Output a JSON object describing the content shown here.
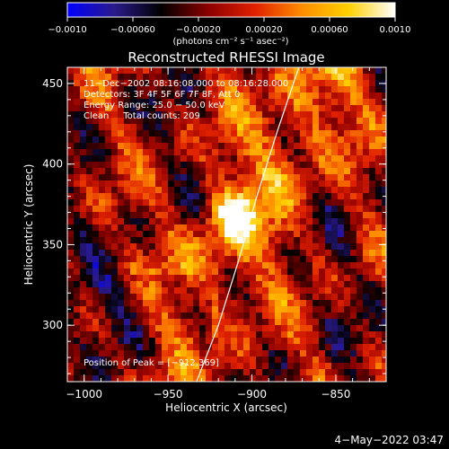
{
  "chart_data": {
    "type": "heatmap",
    "title": "Reconstructed RHESSI Image",
    "xlabel": "Heliocentric X (arcsec)",
    "ylabel": "Heliocentric Y (arcsec)",
    "xlim": [
      -1010,
      -820
    ],
    "ylim": [
      265,
      460
    ],
    "x_ticks": [
      -1000,
      -950,
      -900,
      -850
    ],
    "y_ticks": [
      300,
      350,
      400,
      450
    ],
    "x_tick_labels": [
      "−1000",
      "−950",
      "−900",
      "−850"
    ],
    "y_tick_labels": [
      "300",
      "350",
      "400",
      "450"
    ],
    "colorbar": {
      "range": [
        -0.001,
        0.001
      ],
      "ticks": [
        -0.001,
        -0.0006,
        -0.0002,
        0.0002,
        0.0006,
        0.001
      ],
      "tick_labels": [
        "−0.0010",
        "−0.00060",
        "−0.00020",
        "0.00020",
        "0.00060",
        "0.0010"
      ],
      "units": "(photons cm⁻² s⁻¹ asec⁻²)",
      "stops": [
        "#0000ff",
        "#2a1a8c",
        "#000000",
        "#8a0000",
        "#e02000",
        "#ff8c00",
        "#ffd000",
        "#ffffff"
      ]
    },
    "annotations": {
      "time": "11−Dec−2002 08:16:08.000 to 08:16:28.000",
      "detectors": "Detectors: 3F 4F 5F 6F 7F 8F, Att 0",
      "energy": "Energy Range: 25.0 − 50.0 keV",
      "clean": "Clean     Total counts: 209",
      "peak": "Position of Peak = [−912,369]"
    },
    "peak_position": [
      -912,
      369
    ],
    "limb_curve": [
      [
        -933,
        265
      ],
      [
        -920,
        300
      ],
      [
        -908,
        340
      ],
      [
        -897,
        380
      ],
      [
        -885,
        420
      ],
      [
        -872,
        460
      ]
    ],
    "footer_timestamp": "4−May−2022 03:47"
  }
}
